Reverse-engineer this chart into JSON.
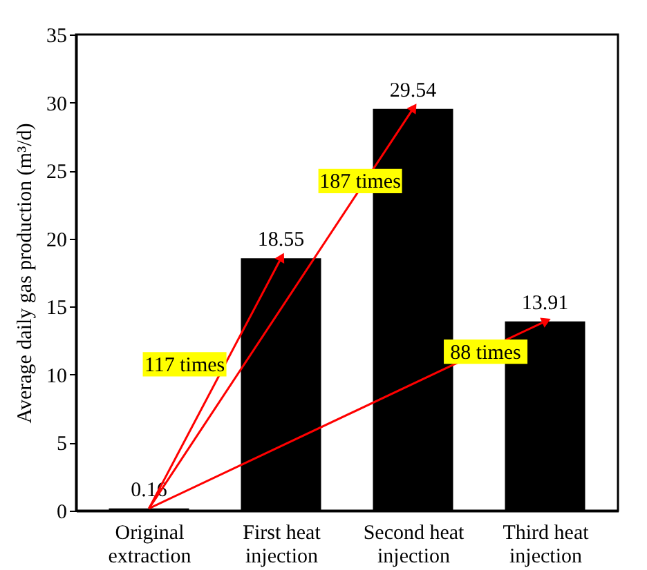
{
  "chart_data": {
    "type": "bar",
    "ylabel": "Average daily gas production (m³/d)",
    "categories": [
      "Original extraction",
      "First heat injection",
      "Second heat injection",
      "Third heat injection"
    ],
    "values": [
      0.16,
      18.55,
      29.54,
      13.91
    ],
    "color": "#000000",
    "ylim": [
      0,
      35
    ],
    "yticks": [
      0,
      5,
      10,
      15,
      20,
      25,
      30,
      35
    ],
    "grid": false,
    "data_labels": true,
    "annotations": [
      "117 times",
      "187 times",
      "88 times"
    ]
  }
}
